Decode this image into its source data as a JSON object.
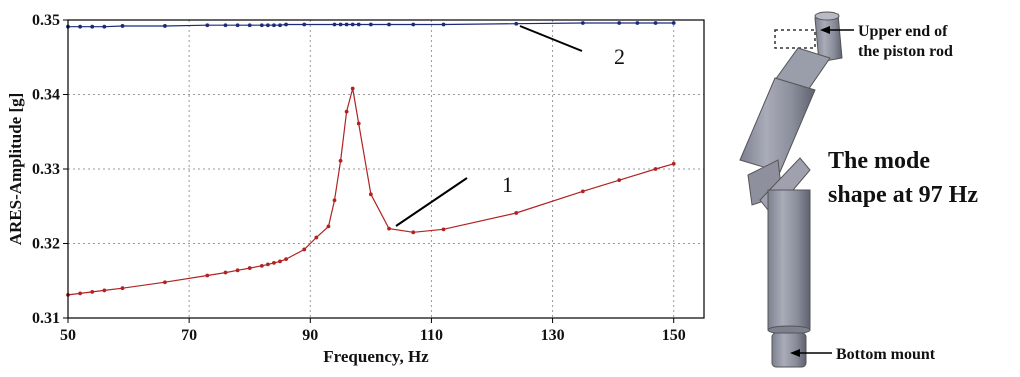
{
  "chart_data": {
    "type": "line",
    "title": "",
    "xlabel": "Frequency, Hz",
    "ylabel": "ARES-Amplitude [g]",
    "xlim": [
      50,
      155
    ],
    "ylim": [
      0.31,
      0.35
    ],
    "x_ticks": [
      "50",
      "70",
      "90",
      "110",
      "130",
      "150"
    ],
    "y_ticks": [
      "0.31",
      "0.32",
      "0.33",
      "0.34",
      "0.35"
    ],
    "grid": true,
    "series": [
      {
        "name": "",
        "callout": "1",
        "color": "#b22222",
        "x": [
          50,
          52,
          54,
          56,
          59,
          66,
          73,
          76,
          78,
          80,
          82,
          83,
          84,
          85,
          86,
          89,
          91,
          93,
          94,
          95,
          96,
          97,
          98,
          100,
          103,
          107,
          112,
          124,
          135,
          141,
          147,
          150
        ],
        "y": [
          0.3131,
          0.3133,
          0.3135,
          0.3137,
          0.314,
          0.3148,
          0.3157,
          0.3161,
          0.3164,
          0.3167,
          0.317,
          0.3172,
          0.3174,
          0.3176,
          0.3179,
          0.3192,
          0.3208,
          0.3223,
          0.3258,
          0.3311,
          0.3377,
          0.3408,
          0.3361,
          0.3266,
          0.322,
          0.3215,
          0.3219,
          0.3241,
          0.327,
          0.3285,
          0.33,
          0.3307
        ]
      },
      {
        "name": "",
        "callout": "2",
        "color": "#1c2a7a",
        "x": [
          50,
          52,
          54,
          56,
          59,
          66,
          73,
          76,
          78,
          80,
          82,
          83,
          84,
          85,
          86,
          89,
          94,
          95,
          96,
          97,
          98,
          100,
          103,
          107,
          112,
          124,
          135,
          141,
          144,
          147,
          150
        ],
        "y": [
          0.3491,
          0.3491,
          0.3491,
          0.3491,
          0.3492,
          0.3492,
          0.3493,
          0.3493,
          0.3493,
          0.3493,
          0.3493,
          0.3493,
          0.3493,
          0.3493,
          0.3494,
          0.3494,
          0.3494,
          0.3494,
          0.3494,
          0.3494,
          0.3494,
          0.3494,
          0.3494,
          0.3494,
          0.3494,
          0.3495,
          0.3496,
          0.3496,
          0.3496,
          0.3496,
          0.3496
        ]
      }
    ]
  },
  "figure": {
    "label_top_line1": "Upper end of",
    "label_top_line2": "the piston rod",
    "caption_line1": "The mode",
    "caption_line2": "shape at 97 Hz",
    "label_bottom": "Bottom mount"
  }
}
